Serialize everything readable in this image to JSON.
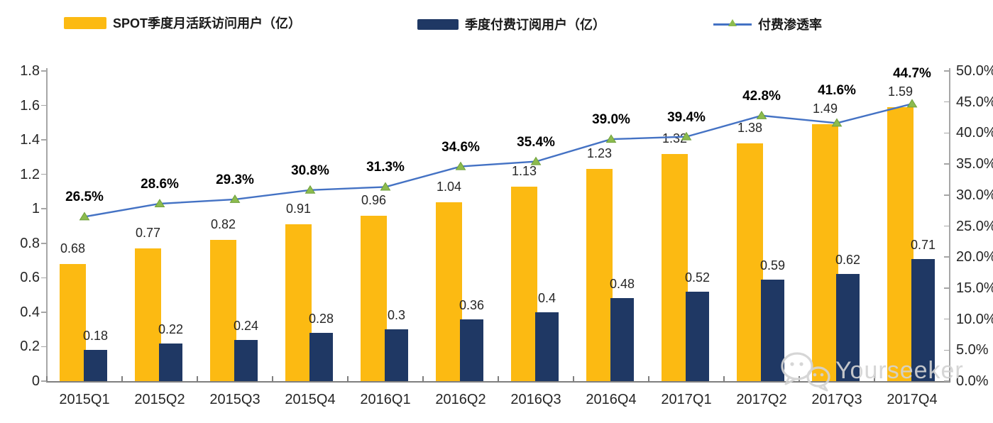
{
  "legend": {
    "items": [
      {
        "label": "SPOT季度月活跃访问用户（亿）",
        "swatch": "bar",
        "color": "#FCBA12"
      },
      {
        "label": "季度付费订阅用户（亿）",
        "swatch": "bar",
        "color": "#1F3864"
      },
      {
        "label": "付费渗透率",
        "swatch": "line-with-triangle-marker",
        "line_color": "#4472C4",
        "marker_color": "#8CBB4E"
      }
    ]
  },
  "watermark": {
    "icon": "wechat-icon",
    "text": "Yourseeker"
  },
  "colors": {
    "bar_mau": "#FCBA12",
    "bar_sub": "#1F3864",
    "line": "#4472C4",
    "marker_fill": "#8CBB4E",
    "marker_stroke": "#6FA03C",
    "axis_side": "#A6A6A6",
    "axis_bottom": "#7F7F7F",
    "label_text": "#262626",
    "pct_text": "#000000",
    "watermark_text": "#D3D3D3"
  },
  "chart_data": {
    "type": "bar",
    "subtype": "combo dual-axis: grouped bars + line",
    "categories": [
      "2015Q1",
      "2015Q2",
      "2015Q3",
      "2015Q4",
      "2016Q1",
      "2016Q2",
      "2016Q3",
      "2016Q4",
      "2017Q1",
      "2017Q2",
      "2017Q3",
      "2017Q4"
    ],
    "series": [
      {
        "name": "SPOT季度月活跃访问用户（亿）",
        "type": "bar",
        "axis": "left",
        "color": "#FCBA12",
        "values": [
          0.68,
          0.77,
          0.82,
          0.91,
          0.96,
          1.04,
          1.13,
          1.23,
          1.32,
          1.38,
          1.49,
          1.59
        ],
        "data_labels": [
          "0.68",
          "0.77",
          "0.82",
          "0.91",
          "0.96",
          "1.04",
          "1.13",
          "1.23",
          "1.32",
          "1.38",
          "1.49",
          "1.59"
        ]
      },
      {
        "name": "季度付费订阅用户（亿）",
        "type": "bar",
        "axis": "left",
        "color": "#1F3864",
        "values": [
          0.18,
          0.22,
          0.24,
          0.28,
          0.3,
          0.36,
          0.4,
          0.48,
          0.52,
          0.59,
          0.62,
          0.71
        ],
        "data_labels": [
          "0.18",
          "0.22",
          "0.24",
          "0.28",
          "0.3",
          "0.36",
          "0.4",
          "0.48",
          "0.52",
          "0.59",
          "0.62",
          "0.71"
        ]
      },
      {
        "name": "付费渗透率",
        "type": "line",
        "axis": "right",
        "color": "#4472C4",
        "marker": "triangle",
        "marker_color": "#8CBB4E",
        "values_pct": [
          26.5,
          28.6,
          29.3,
          30.8,
          31.3,
          34.6,
          35.4,
          39.0,
          39.4,
          42.8,
          41.6,
          44.7
        ],
        "data_labels": [
          "26.5%",
          "28.6%",
          "29.3%",
          "30.8%",
          "31.3%",
          "34.6%",
          "35.4%",
          "39.0%",
          "39.4%",
          "42.8%",
          "41.6%",
          "44.7%"
        ]
      }
    ],
    "left_axis": {
      "range": [
        0,
        1.8
      ],
      "step": 0.2,
      "tick_labels": [
        "0",
        "0.2",
        "0.4",
        "0.6",
        "0.8",
        "1",
        "1.2",
        "1.4",
        "1.6",
        "1.8"
      ]
    },
    "right_axis": {
      "range_pct": [
        0,
        50
      ],
      "step_pct": 5,
      "tick_labels": [
        "0.0%",
        "5.0%",
        "10.0%",
        "15.0%",
        "20.0%",
        "25.0%",
        "30.0%",
        "35.0%",
        "40.0%",
        "45.0%",
        "50.0%"
      ]
    },
    "gridlines": false,
    "legend_position": "top"
  }
}
